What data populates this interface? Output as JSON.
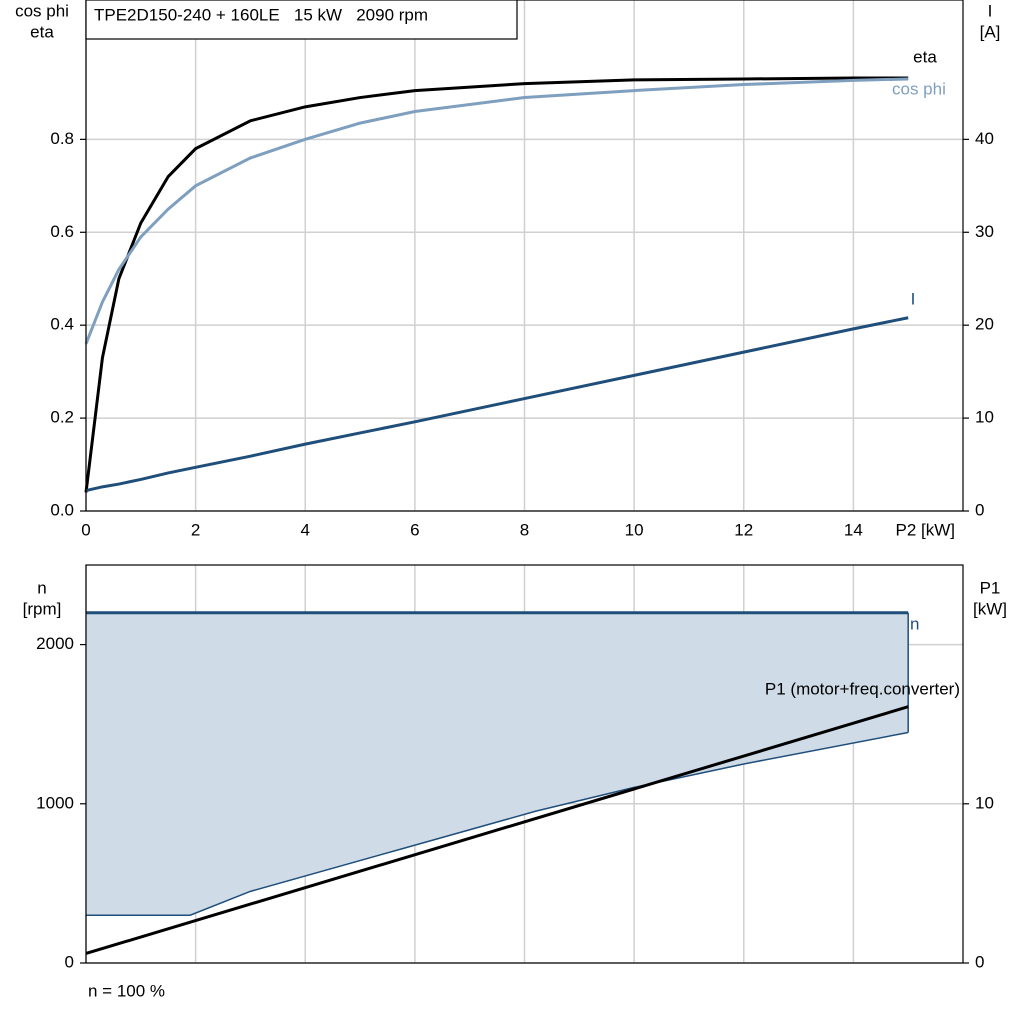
{
  "chart_data": [
    {
      "type": "line",
      "title": "TPE2D150-240 + 160LE   15 kW   2090 rpm",
      "y_label": [
        "cos phi",
        "eta"
      ],
      "y2_label": [
        "I",
        "[A]"
      ],
      "x_label": "P2 [kW]",
      "x": [
        0,
        0.3,
        0.6,
        1,
        1.5,
        2,
        3,
        4,
        5,
        6,
        8,
        10,
        12,
        14,
        15
      ],
      "series": [
        {
          "name": "eta",
          "color": "#000000",
          "values": [
            0.04,
            0.33,
            0.5,
            0.62,
            0.72,
            0.78,
            0.84,
            0.87,
            0.89,
            0.905,
            0.92,
            0.928,
            0.93,
            0.932,
            0.932
          ]
        },
        {
          "name": "cos phi",
          "color": "#7f9fbf",
          "values": [
            0.36,
            0.45,
            0.52,
            0.59,
            0.65,
            0.7,
            0.76,
            0.8,
            0.835,
            0.86,
            0.89,
            0.905,
            0.918,
            0.927,
            0.93
          ]
        },
        {
          "name": "I",
          "color": "#1f4e7a",
          "axis": "y2",
          "values": [
            2.2,
            2.6,
            2.9,
            3.4,
            4.1,
            4.7,
            5.9,
            7.2,
            8.4,
            9.6,
            12.1,
            14.6,
            17.1,
            19.6,
            20.8
          ]
        }
      ],
      "xlim": [
        0,
        16
      ],
      "xticks": [
        0,
        2,
        4,
        6,
        8,
        10,
        12,
        14
      ],
      "ylim": [
        0,
        1.1
      ],
      "yticks": [
        {
          "value": 0,
          "label": "0.0"
        },
        0.2,
        0.4,
        0.6,
        0.8
      ],
      "y2lim": [
        0,
        55
      ],
      "y2ticks": [
        0,
        10,
        20,
        30,
        40
      ],
      "grid": true
    },
    {
      "type": "area_line",
      "y_label": [
        "n",
        "[rpm]"
      ],
      "y2_label": [
        "P1",
        "[kW]"
      ],
      "note": "n = 100 %",
      "x": [
        0,
        1.9,
        3,
        5.8,
        8.2,
        10,
        12,
        15
      ],
      "series": [
        {
          "name": "n",
          "color": "#1f4e7a",
          "fill": "#cfdbe6",
          "values": [
            2200,
            2200,
            2200,
            2200,
            2200,
            2200,
            2200,
            2200
          ],
          "lower_values": [
            300,
            300,
            450,
            721,
            953,
            1103,
            1250,
            1448
          ]
        },
        {
          "name": "P1 (motor+freq.converter)",
          "color": "#000000",
          "axis": "y2",
          "x": [
            0,
            15
          ],
          "values": [
            0.6,
            16.1
          ]
        }
      ],
      "xlim": [
        0,
        16
      ],
      "xticks": [
        0,
        2,
        4,
        6,
        8,
        10,
        12,
        14
      ],
      "ylim": [
        0,
        2500
      ],
      "yticks": [
        0,
        1000,
        2000
      ],
      "y2lim": [
        0,
        25
      ],
      "y2ticks": [
        0,
        10
      ],
      "grid": true
    }
  ]
}
